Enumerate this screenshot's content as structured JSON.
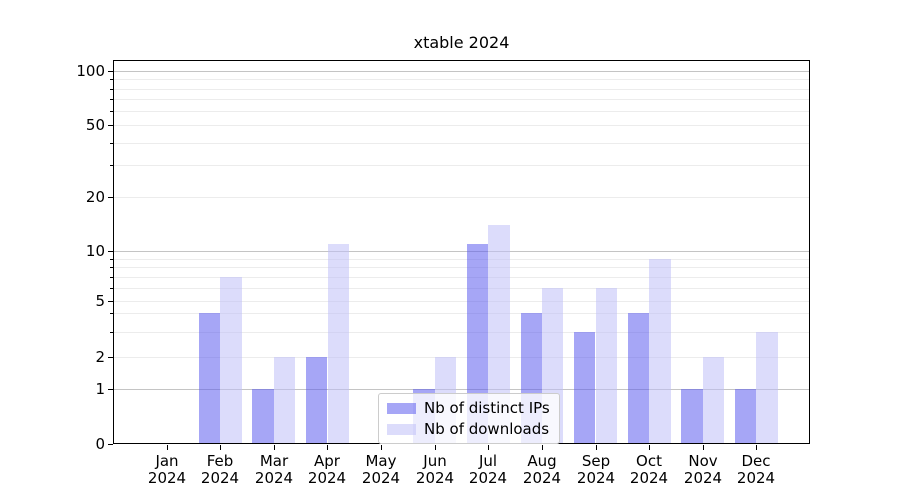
{
  "chart_data": {
    "type": "bar",
    "title": "xtable 2024",
    "categories": [
      "Jan",
      "Feb",
      "Mar",
      "Apr",
      "May",
      "Jun",
      "Jul",
      "Aug",
      "Sep",
      "Oct",
      "Nov",
      "Dec"
    ],
    "x_tick_line2": "2024",
    "series": [
      {
        "name": "Nb of distinct IPs",
        "color": "rgba(93,93,238,0.55)",
        "values": [
          0,
          4,
          1,
          2,
          0,
          1,
          11,
          4,
          3,
          4,
          1,
          1
        ]
      },
      {
        "name": "Nb of downloads",
        "color": "rgba(191,191,247,0.55)",
        "values": [
          0,
          7,
          2,
          11,
          0,
          2,
          14,
          6,
          6,
          9,
          2,
          3
        ]
      }
    ],
    "yscale": "symlog",
    "ylim": [
      0,
      110
    ],
    "ytick_labels": [
      "100",
      "50",
      "20",
      "10",
      "5",
      "2",
      "1",
      "0"
    ],
    "ytick_values": [
      100,
      50,
      20,
      10,
      5,
      2,
      1,
      0
    ],
    "yminor_values": [
      2,
      3,
      4,
      5,
      6,
      7,
      8,
      9,
      20,
      30,
      40,
      50,
      60,
      70,
      80,
      90
    ],
    "ymajor_grid_values": [
      1,
      10,
      100
    ],
    "grid": true,
    "legend_position": "lower center",
    "colors": {
      "axis": "#000000",
      "grid_minor": "#ececec",
      "grid_major": "#c4c4c4",
      "legend_border": "#cccccc",
      "legend_bg": "rgba(255,255,255,0.8)"
    }
  }
}
